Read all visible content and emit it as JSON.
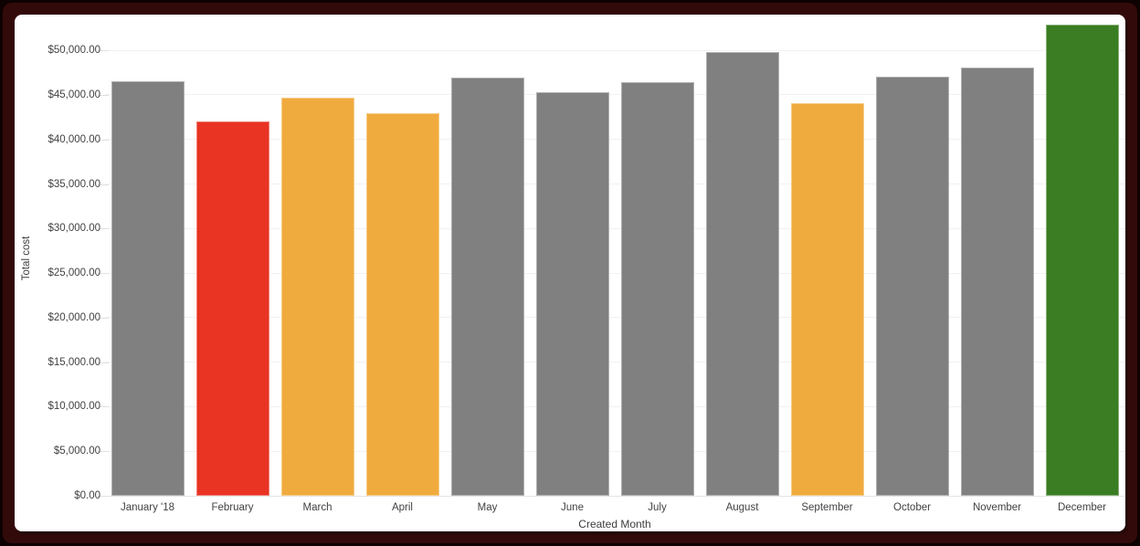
{
  "chart_data": {
    "type": "bar",
    "title": "",
    "xlabel": "Created Month",
    "ylabel": "Total cost",
    "categories": [
      "January '18",
      "February",
      "March",
      "April",
      "May",
      "June",
      "July",
      "August",
      "September",
      "October",
      "November",
      "December"
    ],
    "values": [
      46500,
      42000,
      44700,
      43000,
      46900,
      45300,
      46400,
      49800,
      44100,
      47000,
      48100,
      52900
    ],
    "bar_colors": [
      "#808080",
      "#e93323",
      "#f0ab3e",
      "#f0ab3e",
      "#808080",
      "#808080",
      "#808080",
      "#808080",
      "#f0ab3e",
      "#808080",
      "#808080",
      "#3a7d22"
    ],
    "y_ticks": [
      0,
      5000,
      10000,
      15000,
      20000,
      25000,
      30000,
      35000,
      40000,
      45000,
      50000
    ],
    "y_tick_labels": [
      "$0.00",
      "$5,000.00",
      "$10,000.00",
      "$15,000.00",
      "$20,000.00",
      "$25,000.00",
      "$30,000.00",
      "$35,000.00",
      "$40,000.00",
      "$45,000.00",
      "$50,000.00"
    ],
    "ylim": [
      0,
      53300
    ],
    "grid": true,
    "legend": "none"
  },
  "colors": {
    "bar_gray": "#808080",
    "bar_red": "#e93323",
    "bar_orange": "#f0ab3e",
    "bar_green": "#3a7d22",
    "gridline": "#f1f1f1",
    "axis_text": "#424242",
    "frame_border": "#330a0a",
    "panel_background": "#ffffff"
  }
}
